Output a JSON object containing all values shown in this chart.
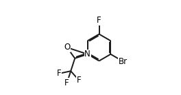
{
  "background": "#ffffff",
  "bond_color": "#1a1a1a",
  "font_size": 8.5,
  "bond_lw": 1.4,
  "fig_width": 2.64,
  "fig_height": 1.38,
  "dpi": 100,
  "xlim": [
    -0.05,
    1.05
  ],
  "ylim": [
    -0.05,
    1.05
  ]
}
